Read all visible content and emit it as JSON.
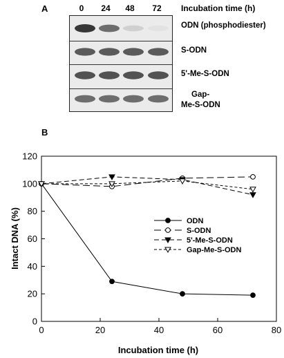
{
  "panel_a": {
    "label": "A",
    "lanes": [
      "0",
      "24",
      "48",
      "72"
    ],
    "incubation_header": "Incubation time (h)",
    "rows": [
      {
        "label": "ODN (phosphodiester)",
        "intensities": [
          1.0,
          0.7,
          0.15,
          0.05
        ]
      },
      {
        "label": "S-ODN",
        "intensities": [
          0.8,
          0.8,
          0.8,
          0.8
        ]
      },
      {
        "label": "5'-Me-S-ODN",
        "intensities": [
          0.85,
          0.85,
          0.85,
          0.85
        ]
      },
      {
        "label_lines": [
          "Gap-",
          "Me-S-ODN"
        ],
        "intensities": [
          0.7,
          0.7,
          0.7,
          0.7
        ]
      }
    ]
  },
  "panel_b": {
    "label": "B"
  },
  "chart_data": {
    "type": "line",
    "xlabel": "Incubation time (h)",
    "ylabel": "Intact DNA (%)",
    "xlim": [
      0,
      80
    ],
    "ylim": [
      0,
      120
    ],
    "xticks": [
      0,
      20,
      40,
      60,
      80
    ],
    "yticks": [
      0,
      20,
      40,
      60,
      80,
      100,
      120
    ],
    "grid": false,
    "legend_position": "middle-right",
    "series": [
      {
        "name": "ODN",
        "marker": "filled-circle",
        "line": "solid",
        "x": [
          0,
          24,
          48,
          72
        ],
        "y": [
          100,
          29,
          20,
          19
        ]
      },
      {
        "name": "S-ODN",
        "marker": "open-circle",
        "line": "long-dash",
        "x": [
          0,
          24,
          48,
          72
        ],
        "y": [
          100,
          98,
          104,
          105
        ]
      },
      {
        "name": "5'-Me-S-ODN",
        "marker": "filled-triangle-down",
        "line": "dash",
        "x": [
          0,
          24,
          48,
          72
        ],
        "y": [
          100,
          105,
          103,
          92
        ]
      },
      {
        "name": "Gap-Me-S-ODN",
        "marker": "open-triangle-down",
        "line": "short-dash",
        "x": [
          0,
          24,
          48,
          72
        ],
        "y": [
          100,
          100,
          102,
          96
        ]
      }
    ]
  }
}
